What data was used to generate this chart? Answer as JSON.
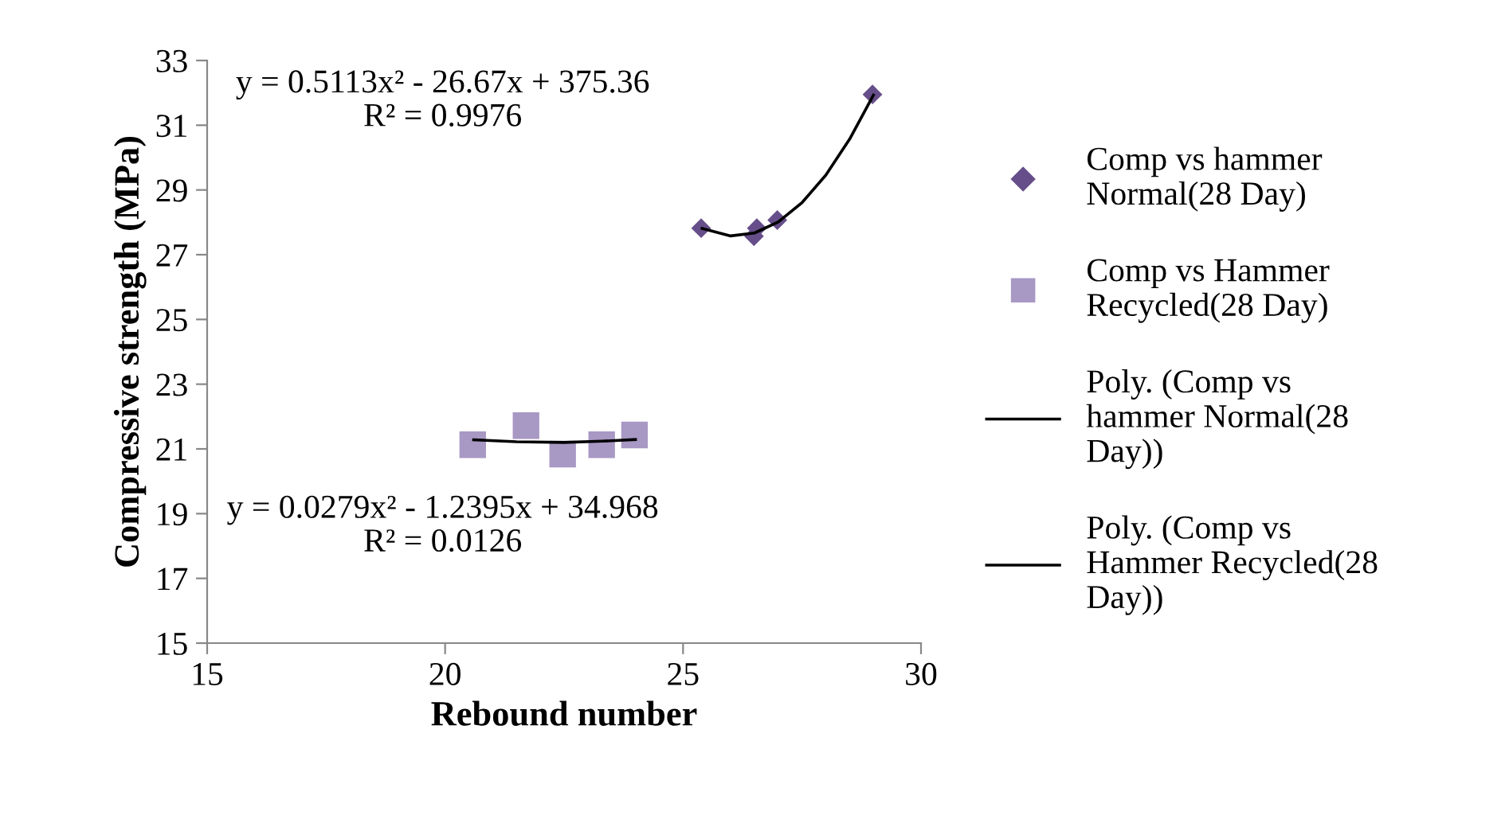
{
  "chart_data": {
    "type": "scatter",
    "xlabel": "Rebound number",
    "ylabel": "Compressive strength (MPa)",
    "xlim": [
      15,
      30
    ],
    "xticks": [
      15,
      20,
      25,
      30
    ],
    "ylim": [
      15,
      33
    ],
    "yticks": [
      15,
      17,
      19,
      21,
      23,
      25,
      27,
      29,
      31,
      33
    ],
    "grid": false,
    "legend": "right",
    "series": [
      {
        "name": "Comp vs hammer Normal(28 Day)",
        "color": "#664e8a",
        "marker": "diamond",
        "x": [
          25.38,
          26.49,
          26.55,
          26.98,
          28.98
        ],
        "values": [
          27.82,
          27.57,
          27.82,
          28.07,
          31.95
        ]
      },
      {
        "name": "Comp vs Hammer Recycled(28 Day)",
        "color": "#a898c4",
        "marker": "square",
        "x": [
          20.58,
          21.7,
          22.47,
          23.29,
          23.98
        ],
        "values": [
          21.13,
          21.72,
          20.84,
          21.13,
          21.43
        ]
      },
      {
        "name": "Poly. (Comp vs hammer Normal(28 Day))",
        "type": "line",
        "color": "#000000",
        "marker": "none",
        "x": [
          25.4,
          26,
          26.5,
          27,
          27.5,
          28,
          28.5,
          29
        ],
        "values": [
          27.81,
          27.58,
          27.67,
          28.01,
          28.61,
          29.46,
          30.57,
          31.93
        ]
      },
      {
        "name": "Poly. (Comp vs Hammer Recycled(28 Day))",
        "type": "line",
        "color": "#000000",
        "marker": "none",
        "x": [
          20.6,
          21.5,
          22.5,
          23.3,
          24
        ],
        "values": [
          21.28,
          21.22,
          21.2,
          21.24,
          21.29
        ]
      }
    ],
    "annotations": [
      "y = 0.5113x² - 26.67x + 375.36\nR² = 0.9976",
      "y = 0.0279x² - 1.2395x + 34.968\nR² = 0.0126"
    ]
  }
}
